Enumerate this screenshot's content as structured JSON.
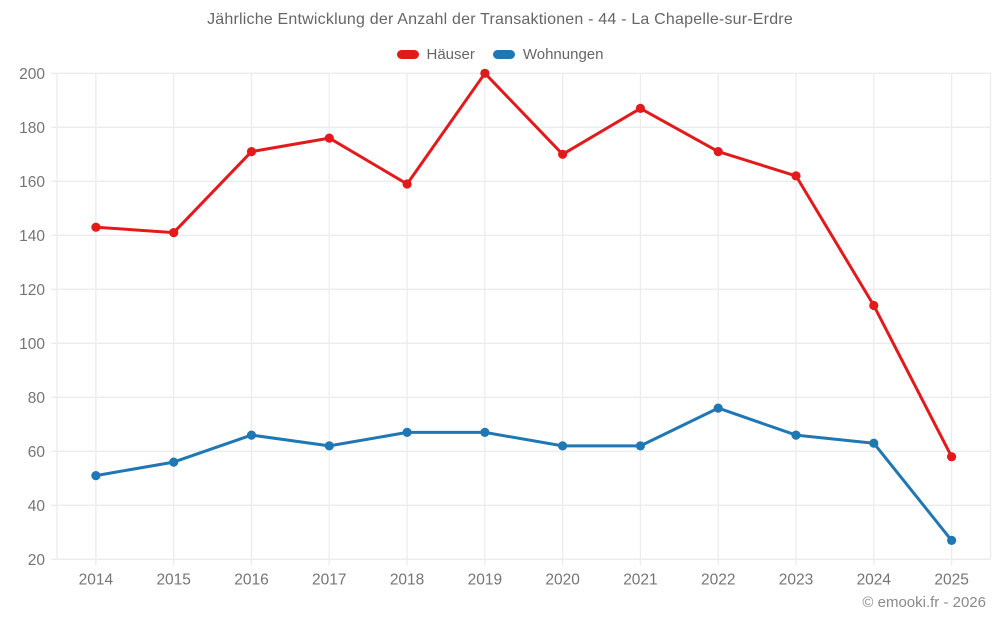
{
  "chart_data": {
    "type": "line",
    "title": "Jährliche Entwicklung der Anzahl der Transaktionen - 44 - La Chapelle-sur-Erdre",
    "categories": [
      "2014",
      "2015",
      "2016",
      "2017",
      "2018",
      "2019",
      "2020",
      "2021",
      "2022",
      "2023",
      "2024",
      "2025"
    ],
    "series": [
      {
        "name": "Häuser",
        "color": "#e31a1c",
        "values": [
          143,
          141,
          171,
          176,
          159,
          200,
          170,
          187,
          171,
          162,
          114,
          58
        ]
      },
      {
        "name": "Wohnungen",
        "color": "#1f78b4",
        "values": [
          51,
          56,
          66,
          62,
          67,
          67,
          62,
          62,
          76,
          66,
          63,
          27
        ]
      }
    ],
    "ylim": [
      20,
      200
    ],
    "yticks": [
      20,
      40,
      60,
      80,
      100,
      120,
      140,
      160,
      180,
      200
    ],
    "xlabel": "",
    "ylabel": "",
    "grid": true,
    "legend_position": "top",
    "marker": "circle"
  },
  "footer": {
    "copyright": "© emooki.fr - 2026"
  },
  "colors": {
    "grid": "#ececec",
    "title_text": "#666666",
    "tick_text": "#757575",
    "footer_text": "#8a8a8a",
    "background": "#ffffff"
  }
}
